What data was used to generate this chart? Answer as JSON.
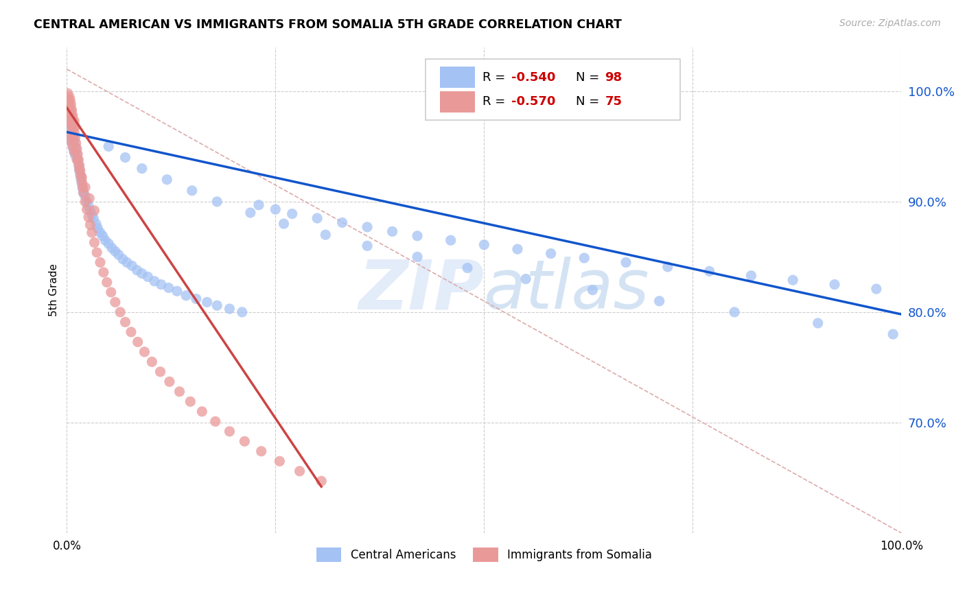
{
  "title": "CENTRAL AMERICAN VS IMMIGRANTS FROM SOMALIA 5TH GRADE CORRELATION CHART",
  "source": "Source: ZipAtlas.com",
  "ylabel": "5th Grade",
  "legend_blue_r": "R = ",
  "legend_blue_r_val": "-0.540",
  "legend_blue_n": "N = ",
  "legend_blue_n_val": "98",
  "legend_pink_r": "R = ",
  "legend_pink_r_val": "-0.570",
  "legend_pink_n": "N = ",
  "legend_pink_n_val": "75",
  "legend_label_blue": "Central Americans",
  "legend_label_pink": "Immigrants from Somalia",
  "blue_color": "#a4c2f4",
  "pink_color": "#ea9999",
  "trendline_blue_color": "#1155cc",
  "trendline_pink_color": "#cc4444",
  "trendline_diag_color": "#ddaaaa",
  "watermark_zip": "ZIP",
  "watermark_atlas": "atlas",
  "blue_scatter_x": [
    0.001,
    0.002,
    0.002,
    0.003,
    0.003,
    0.003,
    0.004,
    0.004,
    0.005,
    0.005,
    0.006,
    0.006,
    0.007,
    0.007,
    0.008,
    0.008,
    0.009,
    0.009,
    0.01,
    0.01,
    0.011,
    0.012,
    0.013,
    0.014,
    0.015,
    0.016,
    0.017,
    0.018,
    0.019,
    0.02,
    0.022,
    0.024,
    0.026,
    0.028,
    0.03,
    0.032,
    0.035,
    0.037,
    0.04,
    0.043,
    0.046,
    0.05,
    0.054,
    0.058,
    0.062,
    0.067,
    0.072,
    0.078,
    0.084,
    0.09,
    0.097,
    0.105,
    0.113,
    0.122,
    0.132,
    0.143,
    0.155,
    0.168,
    0.18,
    0.195,
    0.21,
    0.23,
    0.25,
    0.27,
    0.3,
    0.33,
    0.36,
    0.39,
    0.42,
    0.46,
    0.5,
    0.54,
    0.58,
    0.62,
    0.67,
    0.72,
    0.77,
    0.82,
    0.87,
    0.92,
    0.97,
    0.05,
    0.07,
    0.09,
    0.12,
    0.15,
    0.18,
    0.22,
    0.26,
    0.31,
    0.36,
    0.42,
    0.48,
    0.55,
    0.63,
    0.71,
    0.8,
    0.9,
    0.99
  ],
  "blue_scatter_y": [
    0.975,
    0.97,
    0.96,
    0.968,
    0.958,
    0.975,
    0.965,
    0.96,
    0.968,
    0.958,
    0.962,
    0.955,
    0.96,
    0.952,
    0.958,
    0.948,
    0.955,
    0.945,
    0.95,
    0.942,
    0.948,
    0.943,
    0.938,
    0.933,
    0.928,
    0.924,
    0.92,
    0.916,
    0.912,
    0.908,
    0.905,
    0.9,
    0.896,
    0.892,
    0.888,
    0.885,
    0.88,
    0.876,
    0.872,
    0.869,
    0.865,
    0.862,
    0.858,
    0.855,
    0.852,
    0.848,
    0.845,
    0.842,
    0.838,
    0.835,
    0.832,
    0.828,
    0.825,
    0.822,
    0.819,
    0.815,
    0.812,
    0.809,
    0.806,
    0.803,
    0.8,
    0.897,
    0.893,
    0.889,
    0.885,
    0.881,
    0.877,
    0.873,
    0.869,
    0.865,
    0.861,
    0.857,
    0.853,
    0.849,
    0.845,
    0.841,
    0.837,
    0.833,
    0.829,
    0.825,
    0.821,
    0.95,
    0.94,
    0.93,
    0.92,
    0.91,
    0.9,
    0.89,
    0.88,
    0.87,
    0.86,
    0.85,
    0.84,
    0.83,
    0.82,
    0.81,
    0.8,
    0.79,
    0.78
  ],
  "pink_scatter_x": [
    0.001,
    0.001,
    0.002,
    0.002,
    0.003,
    0.003,
    0.003,
    0.004,
    0.004,
    0.004,
    0.005,
    0.005,
    0.005,
    0.006,
    0.006,
    0.006,
    0.007,
    0.007,
    0.007,
    0.008,
    0.008,
    0.009,
    0.009,
    0.01,
    0.01,
    0.011,
    0.012,
    0.013,
    0.014,
    0.015,
    0.016,
    0.017,
    0.018,
    0.019,
    0.02,
    0.022,
    0.024,
    0.026,
    0.028,
    0.03,
    0.033,
    0.036,
    0.04,
    0.044,
    0.048,
    0.053,
    0.058,
    0.064,
    0.07,
    0.077,
    0.085,
    0.093,
    0.102,
    0.112,
    0.123,
    0.135,
    0.148,
    0.162,
    0.178,
    0.195,
    0.213,
    0.233,
    0.255,
    0.279,
    0.305,
    0.003,
    0.005,
    0.007,
    0.009,
    0.012,
    0.015,
    0.018,
    0.022,
    0.027,
    0.033
  ],
  "pink_scatter_y": [
    0.998,
    0.993,
    0.99,
    0.983,
    0.988,
    0.978,
    0.995,
    0.985,
    0.975,
    0.992,
    0.982,
    0.972,
    0.988,
    0.978,
    0.968,
    0.983,
    0.973,
    0.963,
    0.978,
    0.968,
    0.958,
    0.973,
    0.963,
    0.968,
    0.958,
    0.953,
    0.948,
    0.943,
    0.938,
    0.933,
    0.928,
    0.923,
    0.918,
    0.913,
    0.908,
    0.9,
    0.893,
    0.886,
    0.879,
    0.872,
    0.863,
    0.854,
    0.845,
    0.836,
    0.827,
    0.818,
    0.809,
    0.8,
    0.791,
    0.782,
    0.773,
    0.764,
    0.755,
    0.746,
    0.737,
    0.728,
    0.719,
    0.71,
    0.701,
    0.692,
    0.683,
    0.674,
    0.665,
    0.656,
    0.647,
    0.96,
    0.955,
    0.95,
    0.945,
    0.938,
    0.93,
    0.922,
    0.913,
    0.903,
    0.892
  ],
  "blue_trend_x": [
    0.0,
    1.0
  ],
  "blue_trend_y": [
    0.963,
    0.798
  ],
  "pink_trend_x": [
    0.0,
    0.305
  ],
  "pink_trend_y": [
    0.985,
    0.642
  ],
  "diag_trend_x": [
    0.0,
    1.0
  ],
  "diag_trend_y": [
    1.02,
    0.6
  ],
  "xmin": 0.0,
  "xmax": 1.0,
  "ymin": 0.6,
  "ymax": 1.04,
  "ytick_positions": [
    1.0,
    0.9,
    0.8,
    0.7
  ],
  "ytick_labels": [
    "100.0%",
    "90.0%",
    "80.0%",
    "70.0%"
  ],
  "xtick_positions": [
    0.0,
    0.25,
    0.5,
    0.75,
    1.0
  ],
  "xtick_labels": [
    "0.0%",
    "",
    "",
    "",
    "100.0%"
  ]
}
